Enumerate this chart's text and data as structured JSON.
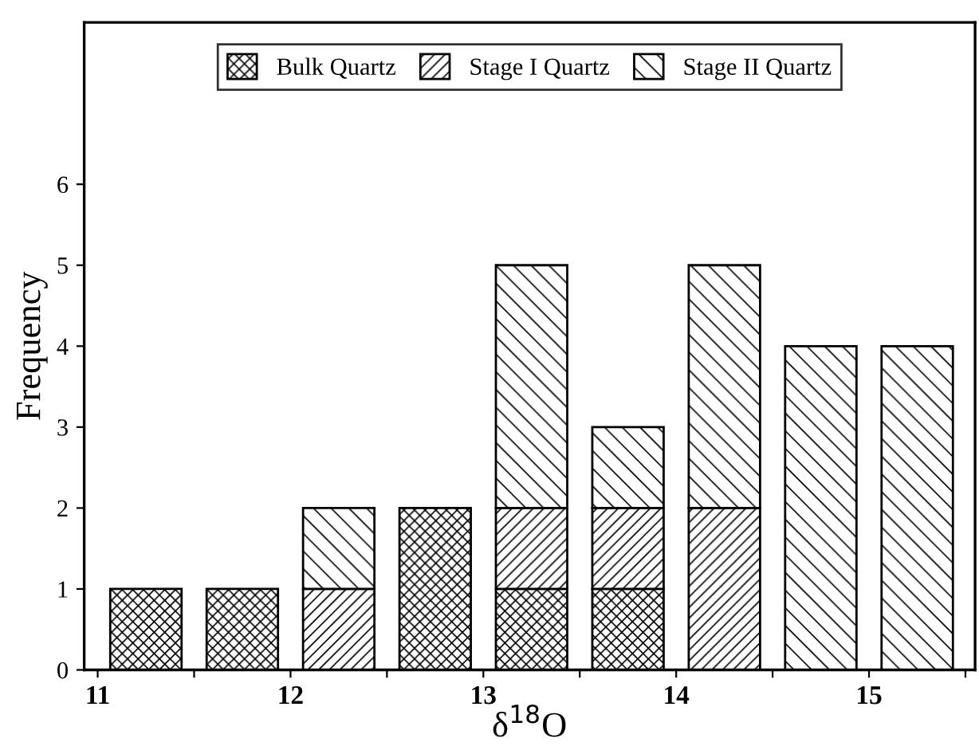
{
  "chart_data": {
    "type": "bar",
    "stacked": true,
    "xlabel": "δ$^{18}$O",
    "ylabel": "Frequency",
    "x": [
      11.25,
      11.75,
      12.25,
      12.75,
      13.25,
      13.75,
      14.25,
      14.75,
      15.25
    ],
    "series": [
      {
        "name": "Bulk Quartz",
        "color": "#000000",
        "values": [
          1,
          1,
          0,
          2,
          1,
          1,
          0,
          0,
          0
        ]
      },
      {
        "name": "Stage I Quartz",
        "color": "#000000",
        "values": [
          0,
          0,
          1,
          0,
          1,
          1,
          2,
          0,
          0
        ]
      },
      {
        "name": "Stage II Quartz",
        "color": "#000000",
        "values": [
          0,
          0,
          1,
          0,
          3,
          1,
          3,
          4,
          4
        ]
      }
    ],
    "xlim": [
      10.93,
      15.55
    ],
    "ylim": [
      0,
      8
    ],
    "xticks": [
      11,
      {
        "value": 11.5,
        "label": null
      },
      12,
      {
        "value": 12.5,
        "label": null
      },
      13,
      {
        "value": 13.5,
        "label": null
      },
      14,
      {
        "value": 14.5,
        "label": null
      },
      15,
      {
        "value": 15.5,
        "label": null
      }
    ],
    "yticks": [
      0,
      1,
      2,
      3,
      4,
      5,
      6
    ],
    "grid": false,
    "legend": "top"
  }
}
